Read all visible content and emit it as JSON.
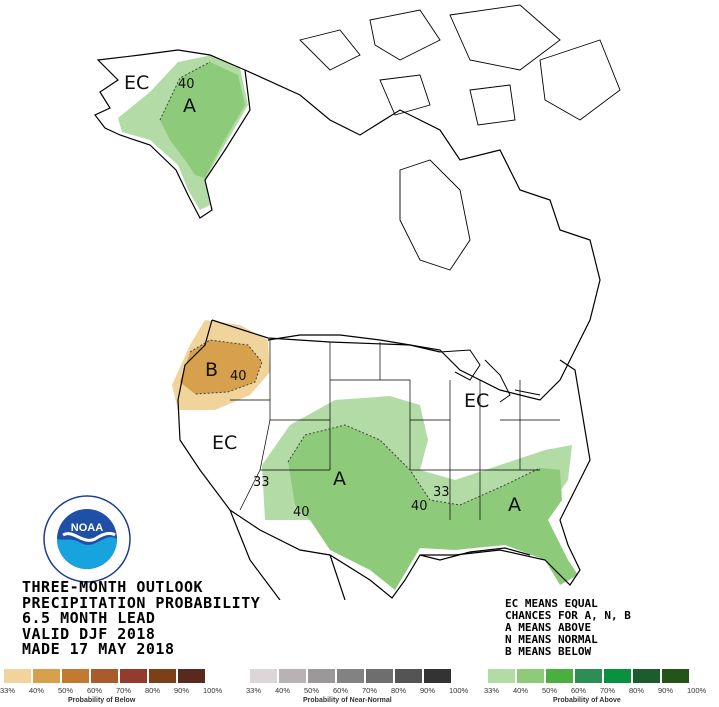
{
  "region_labels": {
    "alaska_ec": "EC",
    "alaska_a": "A",
    "northwest_b": "B",
    "west_ec": "EC",
    "southern_plains_a": "A",
    "southeast_a": "A",
    "east_ec": "EC"
  },
  "contour_labels": {
    "alaska_40": "40",
    "northwest_40": "40",
    "southwest_33": "33",
    "southwest_40": "40",
    "gulf_40": "40",
    "gulf_33": "33"
  },
  "title_lines": [
    "THREE-MONTH OUTLOOK",
    "PRECIPITATION PROBABILITY",
    "6.5 MONTH LEAD",
    "VALID DJF 2018",
    "MADE 17 MAY 2018"
  ],
  "legend_lines": [
    "EC MEANS EQUAL",
    "CHANCES FOR A, N, B",
    "A MEANS ABOVE",
    "N MEANS NORMAL",
    "B MEANS BELOW"
  ],
  "scales": [
    {
      "title": "Probability of Below",
      "ticks": [
        "33%",
        "40%",
        "50%",
        "60%",
        "70%",
        "80%",
        "90%",
        "100%"
      ],
      "colors": [
        "#f0d49c",
        "#d6a04d",
        "#c27a33",
        "#a85c2b",
        "#933b2d",
        "#7d4016",
        "#59291f"
      ]
    },
    {
      "title": "Probability of Near-Normal",
      "ticks": [
        "33%",
        "40%",
        "50%",
        "60%",
        "70%",
        "80%",
        "90%",
        "100%"
      ],
      "colors": [
        "#ddd6d8",
        "#b7b3b4",
        "#9a9898",
        "#828282",
        "#6e6e6e",
        "#545454",
        "#333333"
      ]
    },
    {
      "title": "Probability of Above",
      "ticks": [
        "33%",
        "40%",
        "50%",
        "60%",
        "70%",
        "80%",
        "90%",
        "100%"
      ],
      "colors": [
        "#b3dba6",
        "#8dca7a",
        "#4cae3e",
        "#2e8c55",
        "#0a9140",
        "#1c5c2d",
        "#24541a"
      ]
    }
  ],
  "logo_text": "NOAA"
}
